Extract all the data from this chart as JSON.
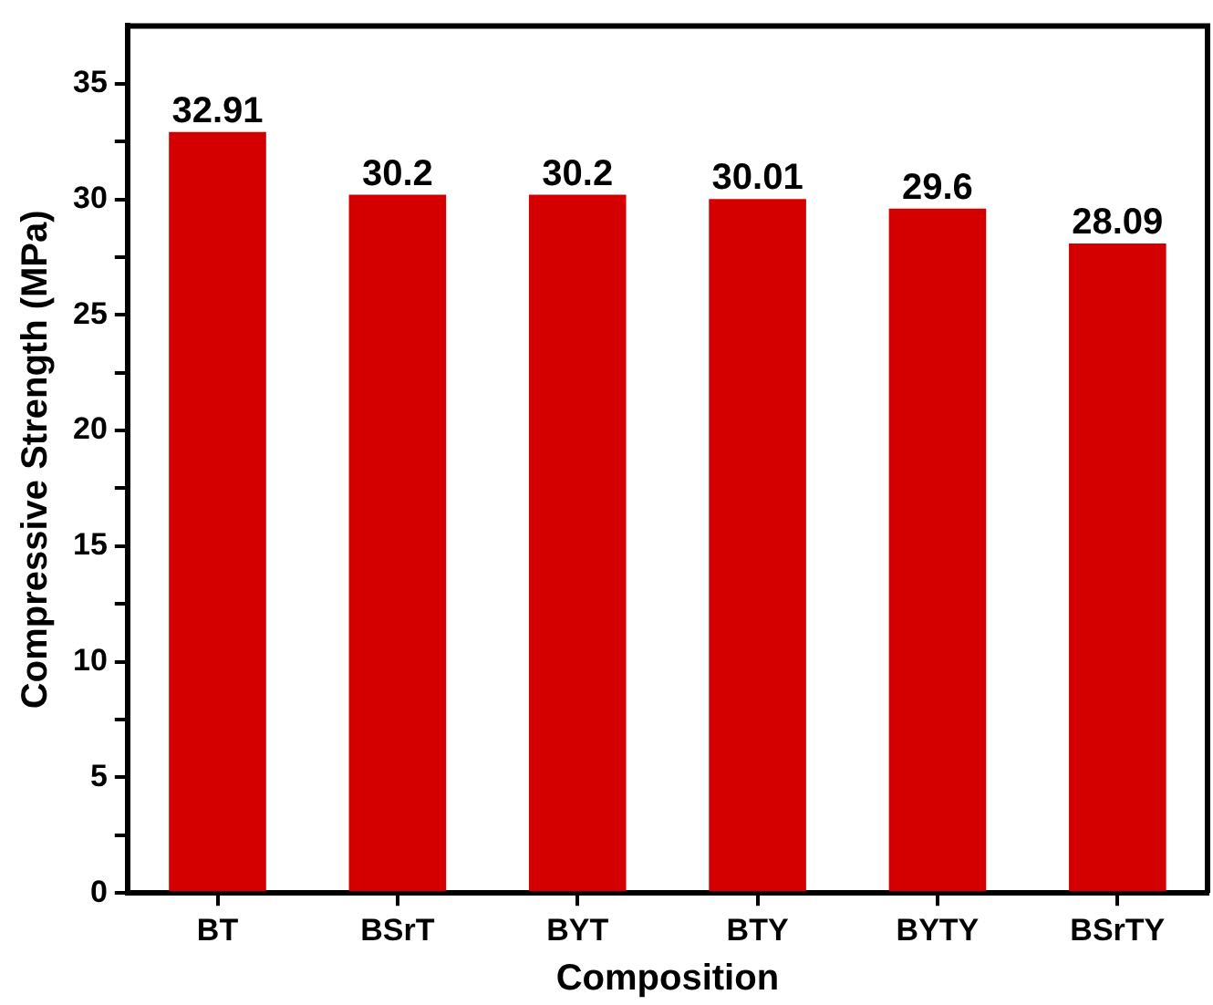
{
  "chart_data": {
    "type": "bar",
    "xlabel": "Composition",
    "ylabel": "Compressive Strength (MPa)",
    "categories": [
      "BT",
      "BSrT",
      "BYT",
      "BTY",
      "BYTY",
      "BSrTY"
    ],
    "values": [
      32.91,
      30.2,
      30.2,
      30.01,
      29.6,
      28.09
    ],
    "color": "#d40000",
    "ylim": [
      0,
      37.5
    ],
    "yticks": [
      0,
      {
        "value": 2.5,
        "label": null
      },
      5,
      {
        "value": 7.5,
        "label": null
      },
      10,
      {
        "value": 12.5,
        "label": null
      },
      15,
      {
        "value": 17.5,
        "label": null
      },
      20,
      {
        "value": 22.5,
        "label": null
      },
      25,
      {
        "value": 27.5,
        "label": null
      },
      30,
      {
        "value": 32.5,
        "label": null
      },
      35
    ],
    "grid": false,
    "legend": false,
    "data_labels": true
  }
}
